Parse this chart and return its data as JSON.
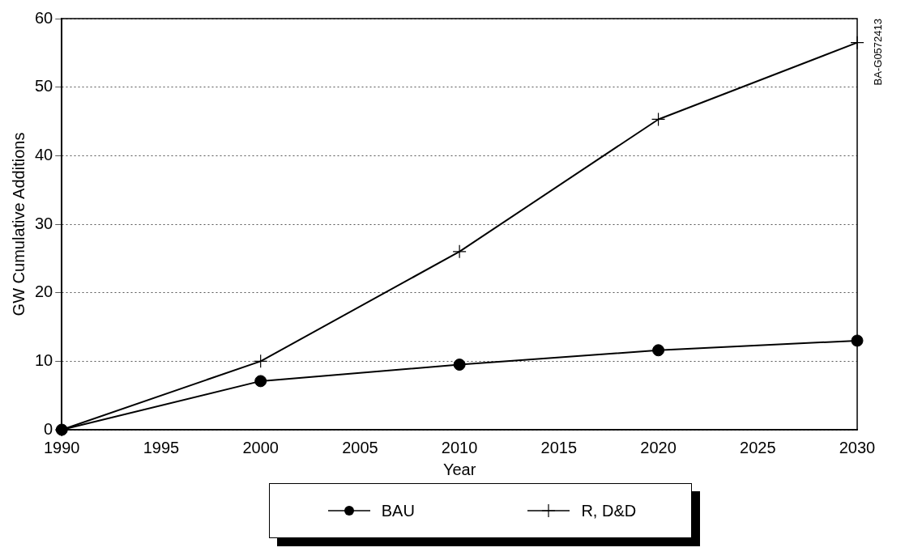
{
  "chart_data": {
    "type": "line",
    "xlabel": "Year",
    "ylabel": "GW Cumulative Additions",
    "x": [
      1990,
      2000,
      2010,
      2020,
      2030
    ],
    "series": [
      {
        "name": "BAU",
        "color": "#000000",
        "marker": "circle",
        "values": [
          0,
          7.1,
          9.5,
          11.6,
          13
        ]
      },
      {
        "name": "R, D&D",
        "color": "#000000",
        "marker": "cross",
        "values": [
          0,
          10,
          26,
          45.3,
          56.5
        ]
      }
    ],
    "xlim": [
      1990,
      2030
    ],
    "xticks": [
      1990,
      1995,
      2000,
      2005,
      2010,
      2015,
      2020,
      2025,
      2030
    ],
    "ylim": [
      0,
      60
    ],
    "yticks": [
      0,
      10,
      20,
      30,
      40,
      50,
      60
    ],
    "grid": "y",
    "legend": "bottom",
    "line_style": "solid",
    "annotations": [
      "BA-G0572413"
    ]
  }
}
